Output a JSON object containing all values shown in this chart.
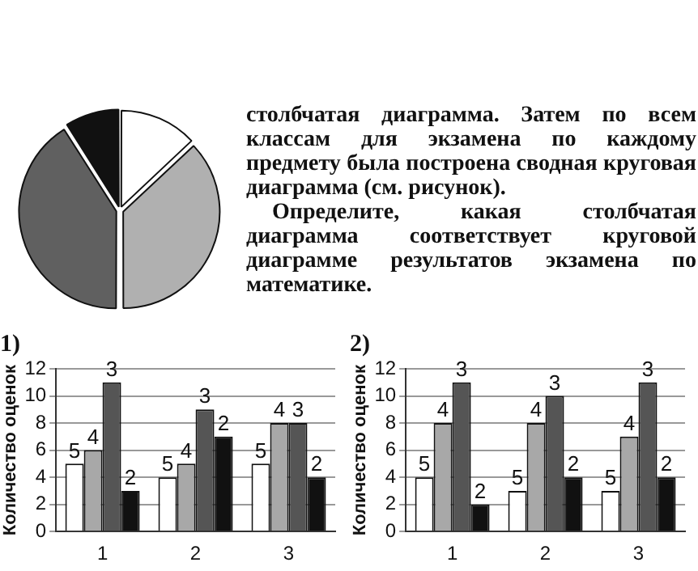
{
  "chart_data": [
    {
      "type": "pie",
      "categories": [
        null,
        null,
        null,
        null
      ],
      "values": [
        13,
        37,
        41,
        9
      ],
      "colors": [
        "#ffffff",
        "#b0b0b0",
        "#606060",
        "#111111"
      ]
    },
    {
      "type": "other",
      "annotations": [
        "столбчатая диаграмма. Затем по всем классам для экзамена по каждому предмету была построена сводная круговая диаграмма (см. рисунок).",
        "Определите, какая столбчатая диаграмма соответствует круговой диаграмме результатов экзамена по математике."
      ]
    },
    {
      "type": "bar",
      "title": "1)",
      "ylabel": "Количество оценок",
      "categories": [
        "1",
        "2",
        "3"
      ],
      "ylim": [
        0,
        12
      ],
      "yticks": [
        0,
        2,
        4,
        6,
        8,
        10,
        12
      ],
      "grid": "y",
      "legend": false,
      "series": [
        {
          "name": "5",
          "color": "#ffffff",
          "values": [
            5,
            4,
            5
          ]
        },
        {
          "name": "4",
          "color": "#a8a8a8",
          "values": [
            6,
            5,
            8
          ]
        },
        {
          "name": "3",
          "color": "#555555",
          "values": [
            11,
            9,
            8
          ]
        },
        {
          "name": "2",
          "color": "#111111",
          "values": [
            3,
            7,
            4
          ]
        }
      ]
    },
    {
      "type": "bar",
      "title": "2)",
      "ylabel": "Количество оценок",
      "categories": [
        "1",
        "2",
        "3"
      ],
      "ylim": [
        0,
        12
      ],
      "yticks": [
        0,
        2,
        4,
        6,
        8,
        10,
        12
      ],
      "grid": "y",
      "legend": false,
      "series": [
        {
          "name": "5",
          "color": "#ffffff",
          "values": [
            4,
            3,
            3
          ]
        },
        {
          "name": "4",
          "color": "#a8a8a8",
          "values": [
            8,
            8,
            7
          ]
        },
        {
          "name": "3",
          "color": "#555555",
          "values": [
            11,
            10,
            11
          ]
        },
        {
          "name": "2",
          "color": "#111111",
          "values": [
            2,
            4,
            4
          ]
        }
      ]
    }
  ]
}
